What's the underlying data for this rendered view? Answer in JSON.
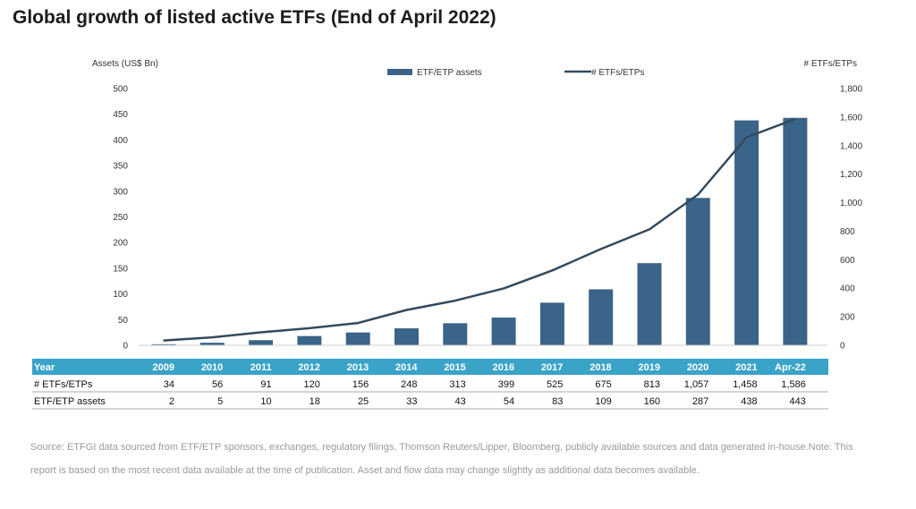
{
  "title": "Global growth of listed active ETFs (End of April 2022)",
  "source_note": "Source: ETFGI data sourced from ETF/ETP sponsors, exchanges, regulatory filings, Thomson Reuters/Lipper, Bloomberg, publicly available sources and data generated in-house.Note: This report is based on the most recent data available at the time of publication. Asset and flow data may change slightly as additional data becomes available.",
  "colors": {
    "bar": "#3a6488",
    "line": "#344a5c",
    "table_header": "#3aa3c8"
  },
  "chart_data": {
    "type": "bar",
    "categories": [
      "2009",
      "2010",
      "2011",
      "2012",
      "2013",
      "2014",
      "2015",
      "2016",
      "2017",
      "2018",
      "2019",
      "2020",
      "2021",
      "Apr-22"
    ],
    "series": [
      {
        "name": "ETF/ETP assets",
        "type": "bar",
        "axis": "left",
        "values": [
          2,
          5,
          10,
          18,
          25,
          33,
          43,
          54,
          83,
          109,
          160,
          287,
          438,
          443
        ]
      },
      {
        "name": "# ETFs/ETPs",
        "type": "line",
        "axis": "right",
        "values": [
          34,
          56,
          91,
          120,
          156,
          248,
          313,
          399,
          525,
          675,
          813,
          1057,
          1458,
          1586
        ]
      }
    ],
    "ylabel": "Assets (US$ Bn)",
    "y2label": "# ETFs/ETPs",
    "ylim": [
      0,
      500
    ],
    "y2lim": [
      0,
      1800
    ],
    "yticks": [
      "0",
      "50",
      "100",
      "150",
      "200",
      "250",
      "300",
      "350",
      "400",
      "450",
      "500"
    ],
    "y2ticks": [
      "0",
      "200",
      "400",
      "600",
      "800",
      "1,000",
      "1,200",
      "1,400",
      "1,600",
      "1,800"
    ],
    "legend_position": "top",
    "grid": false,
    "table": {
      "header_label": "Year",
      "rows": [
        {
          "label": "# ETFs/ETPs",
          "values": [
            "34",
            "56",
            "91",
            "120",
            "156",
            "248",
            "313",
            "399",
            "525",
            "675",
            "813",
            "1,057",
            "1,458",
            "1,586"
          ]
        },
        {
          "label": "ETF/ETP assets",
          "values": [
            "2",
            "5",
            "10",
            "18",
            "25",
            "33",
            "43",
            "54",
            "83",
            "109",
            "160",
            "287",
            "438",
            "443"
          ]
        }
      ]
    }
  }
}
